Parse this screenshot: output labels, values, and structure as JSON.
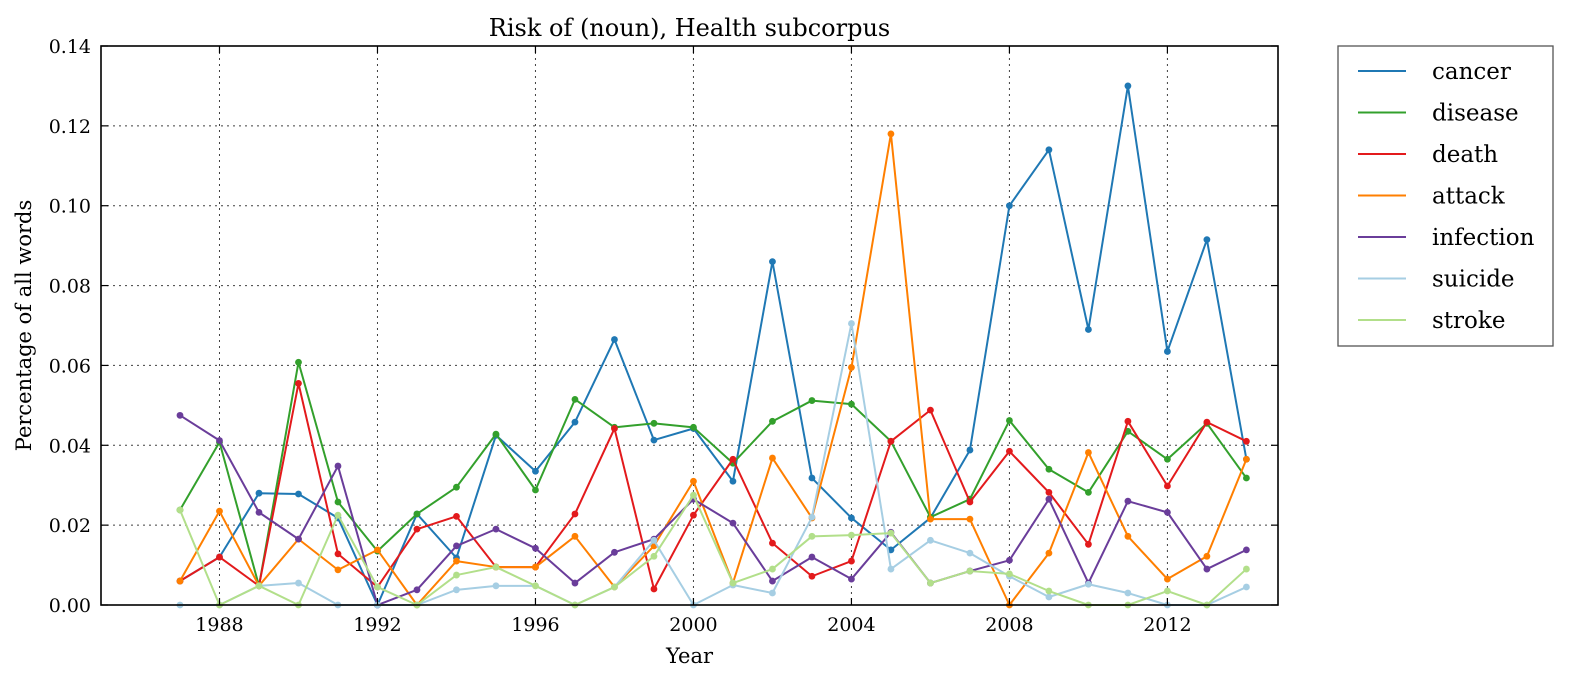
{
  "chart_data": {
    "type": "line",
    "title": "Risk of (noun), Health subcorpus",
    "xlabel": "Year",
    "ylabel": "Percentage of all words",
    "xlim": [
      1985,
      2014.8
    ],
    "ylim": [
      0,
      0.14
    ],
    "xticks": [
      1988,
      1992,
      1996,
      2000,
      2004,
      2008,
      2012
    ],
    "yticks": [
      0.0,
      0.02,
      0.04,
      0.06,
      0.08,
      0.1,
      0.12,
      0.14
    ],
    "ytick_labels": [
      "0.00",
      "0.02",
      "0.04",
      "0.06",
      "0.08",
      "0.10",
      "0.12",
      "0.14"
    ],
    "grid": true,
    "legend_position": "outside-top-right",
    "x": [
      1987,
      1988,
      1989,
      1990,
      1991,
      1992,
      1993,
      1994,
      1995,
      1996,
      1997,
      1998,
      1999,
      2000,
      2001,
      2002,
      2003,
      2004,
      2005,
      2006,
      2007,
      2008,
      2009,
      2010,
      2011,
      2012,
      2013,
      2014
    ],
    "series": [
      {
        "name": "cancer",
        "color": "#1f78b4",
        "values": [
          0.006,
          0.012,
          0.028,
          0.0278,
          0.0218,
          0.0,
          0.0228,
          0.0118,
          0.0425,
          0.0335,
          0.0458,
          0.0665,
          0.0413,
          0.0442,
          0.031,
          0.086,
          0.0318,
          0.0218,
          0.0138,
          0.0218,
          0.0388,
          0.1,
          0.114,
          0.069,
          0.13,
          0.0635,
          0.0915,
          0.0365
        ]
      },
      {
        "name": "disease",
        "color": "#33a02c",
        "values": [
          0.0238,
          0.0408,
          0.0048,
          0.0608,
          0.0258,
          0.0135,
          0.0228,
          0.0295,
          0.0428,
          0.0288,
          0.0515,
          0.0445,
          0.0455,
          0.0445,
          0.0355,
          0.046,
          0.0512,
          0.0503,
          0.041,
          0.022,
          0.0265,
          0.0462,
          0.034,
          0.0282,
          0.0435,
          0.0365,
          0.0455,
          0.0318
        ]
      },
      {
        "name": "death",
        "color": "#e31a1c",
        "values": [
          0.006,
          0.012,
          0.0048,
          0.0555,
          0.0128,
          0.0045,
          0.019,
          0.0222,
          0.0095,
          0.0095,
          0.0228,
          0.0442,
          0.004,
          0.0225,
          0.0365,
          0.0155,
          0.0072,
          0.011,
          0.041,
          0.0488,
          0.0258,
          0.0385,
          0.0282,
          0.0152,
          0.046,
          0.0298,
          0.0458,
          0.041
        ]
      },
      {
        "name": "attack",
        "color": "#ff7f00",
        "values": [
          0.006,
          0.0235,
          0.0048,
          0.0165,
          0.0088,
          0.0138,
          0.0,
          0.011,
          0.0095,
          0.0095,
          0.0172,
          0.0045,
          0.0148,
          0.031,
          0.0055,
          0.0368,
          0.0218,
          0.0595,
          0.118,
          0.0215,
          0.0215,
          0.0,
          0.013,
          0.0382,
          0.0172,
          0.0065,
          0.0122,
          0.0365
        ]
      },
      {
        "name": "infection",
        "color": "#6a3d9a",
        "values": [
          0.0475,
          0.0412,
          0.0232,
          0.0165,
          0.0348,
          0.0,
          0.0038,
          0.0148,
          0.019,
          0.0142,
          0.0055,
          0.0132,
          0.0165,
          0.0265,
          0.0205,
          0.006,
          0.012,
          0.0065,
          0.0182,
          0.0055,
          0.0085,
          0.0112,
          0.0265,
          0.0055,
          0.026,
          0.0232,
          0.009,
          0.0138
        ]
      },
      {
        "name": "suicide",
        "color": "#a6cee3",
        "values": [
          0.0,
          0.0,
          0.0048,
          0.0055,
          0.0,
          0.0,
          0.0,
          0.0038,
          0.0048,
          0.0048,
          0.0,
          0.0045,
          0.0162,
          0.0,
          0.005,
          0.003,
          0.022,
          0.0705,
          0.009,
          0.0162,
          0.013,
          0.0072,
          0.002,
          0.0052,
          0.003,
          0.0,
          0.0,
          0.0045
        ]
      },
      {
        "name": "stroke",
        "color": "#b2df8a",
        "values": [
          0.0238,
          0.0,
          0.0048,
          0.0,
          0.0225,
          0.0045,
          0.0,
          0.0075,
          0.0095,
          0.0048,
          0.0,
          0.0045,
          0.0122,
          0.0275,
          0.0055,
          0.009,
          0.0172,
          0.0175,
          0.018,
          0.0055,
          0.0085,
          0.0078,
          0.0035,
          0.0,
          0.0,
          0.0035,
          0.0,
          0.009
        ]
      }
    ]
  }
}
